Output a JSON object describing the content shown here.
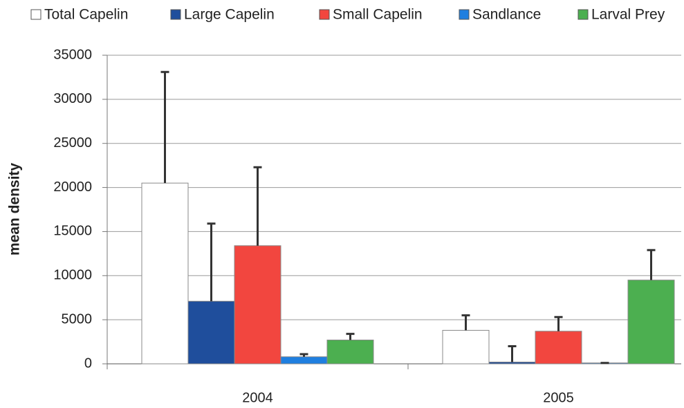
{
  "chart_data": {
    "type": "bar",
    "y_label": "mean density",
    "categories": [
      "2004",
      "2005"
    ],
    "series": [
      {
        "name": "Total Capelin",
        "color": "#ffffff",
        "values": [
          20500,
          3800
        ],
        "errors": [
          12600,
          1700
        ]
      },
      {
        "name": "Large Capelin",
        "color": "#1f4e9c",
        "values": [
          7100,
          200
        ],
        "errors": [
          8800,
          1800
        ]
      },
      {
        "name": "Small Capelin",
        "color": "#f2463f",
        "values": [
          13400,
          3700
        ],
        "errors": [
          8900,
          1600
        ]
      },
      {
        "name": "Sandlance",
        "color": "#1f7fe0",
        "values": [
          800,
          100
        ],
        "errors": [
          300,
          0
        ]
      },
      {
        "name": "Larval Prey",
        "color": "#4caf50",
        "values": [
          2700,
          9500
        ],
        "errors": [
          700,
          3400
        ]
      }
    ],
    "ylim": [
      0,
      35000
    ],
    "yticks": [
      0,
      5000,
      10000,
      15000,
      20000,
      25000,
      30000,
      35000
    ],
    "grid": true
  }
}
